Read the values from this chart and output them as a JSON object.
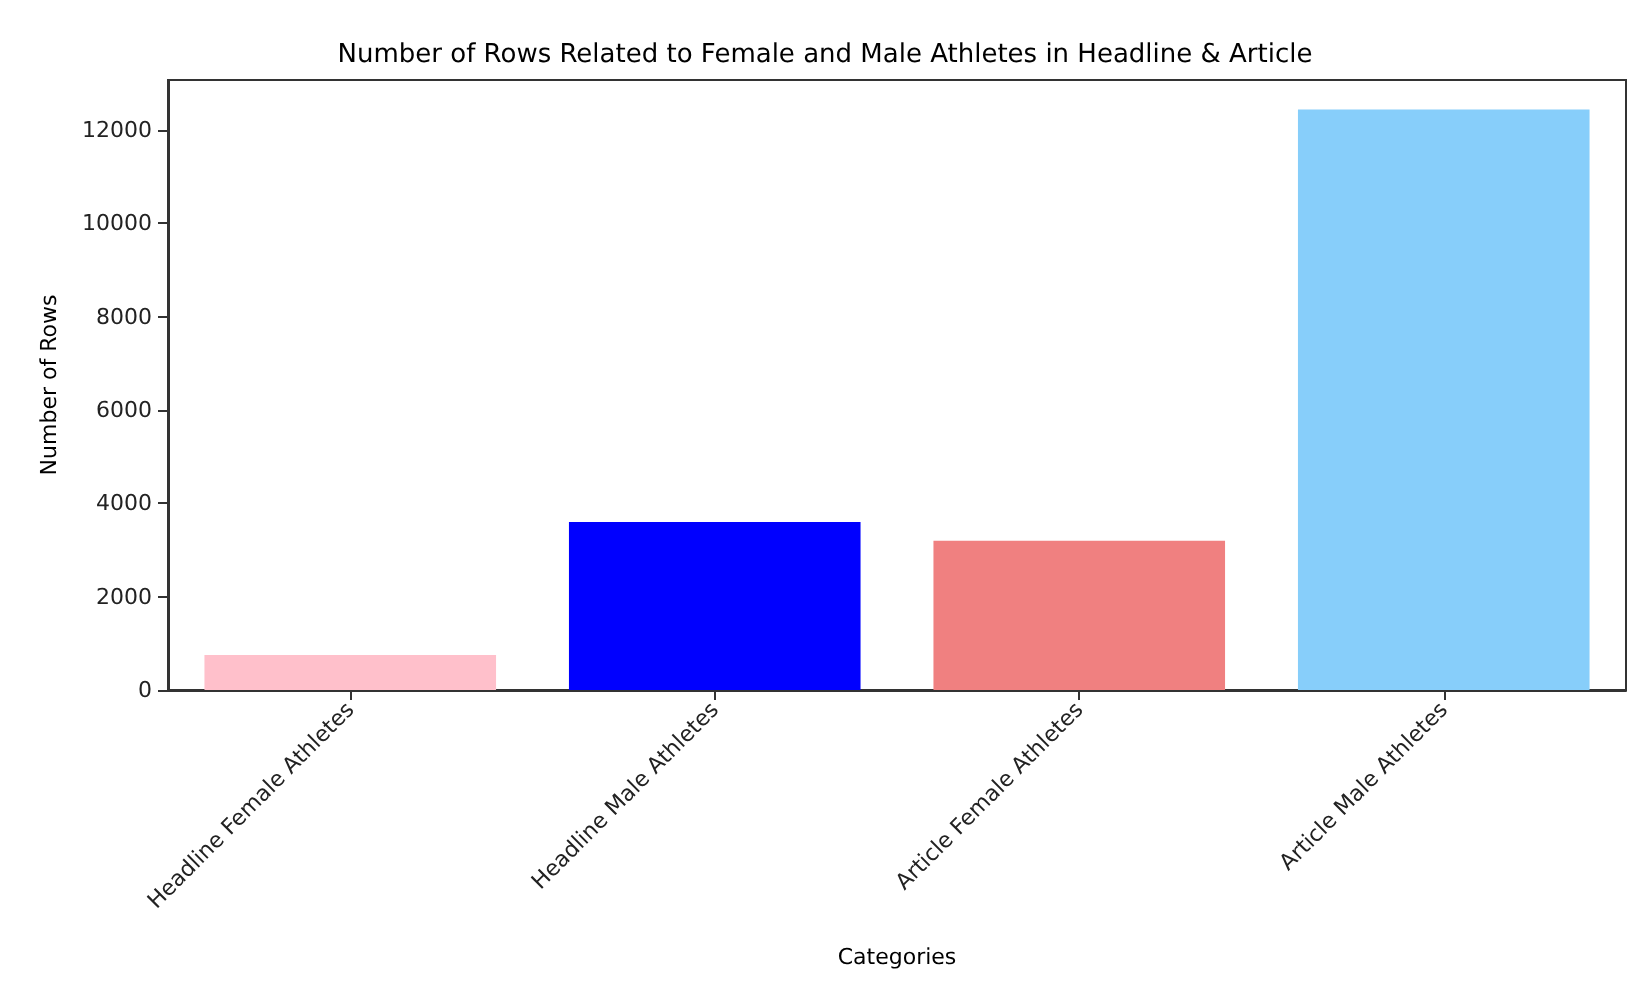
{
  "chart_data": {
    "type": "bar",
    "title": "Number of Rows Related to Female and Male Athletes in Headline & Article",
    "xlabel": "Categories",
    "ylabel": "Number of Rows",
    "categories": [
      "Headline Female Athletes",
      "Headline Male Athletes",
      "Article Female Athletes",
      "Article Male Athletes"
    ],
    "values": [
      750,
      3600,
      3200,
      12440
    ],
    "colors": [
      "#ffc0cb",
      "#0000ff",
      "#f08080",
      "#87cefa"
    ],
    "ylim": [
      0,
      13070
    ],
    "yticks": [
      0,
      2000,
      4000,
      6000,
      8000,
      10000,
      12000
    ],
    "grid": false
  }
}
